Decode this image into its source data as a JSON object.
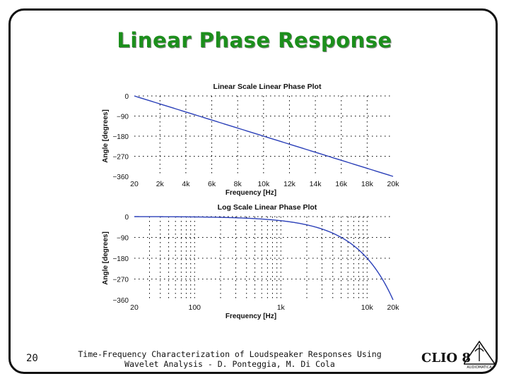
{
  "slide": {
    "title": "Linear Phase Response",
    "page_number": "20",
    "footer_line1": "Time-Frequency Characterization of Loudspeaker Responses Using",
    "footer_line2": "Wavelet Analysis - D. Ponteggia, M. Di Cola",
    "logo_text": "CLIO 8",
    "logo_subtext": "AUDIOMATICA"
  },
  "colors": {
    "title": "#1c8f1c",
    "curve": "#2a3fb8",
    "grid": "#000000"
  },
  "chart_data": [
    {
      "type": "line",
      "title": "Linear Scale Linear Phase Plot",
      "xlabel": "Frequency [Hz]",
      "ylabel": "Angle [degrees]",
      "xscale": "linear",
      "xlim": [
        20,
        20000
      ],
      "ylim": [
        -360,
        0
      ],
      "grid": true,
      "xticks": [
        20,
        2000,
        4000,
        6000,
        8000,
        10000,
        12000,
        14000,
        16000,
        18000,
        20000
      ],
      "xtick_labels": [
        "20",
        "2k",
        "4k",
        "6k",
        "8k",
        "10k",
        "12k",
        "14k",
        "16k",
        "18k",
        "20k"
      ],
      "yticks": [
        0,
        -90,
        -180,
        -270,
        -360
      ],
      "ytick_labels": [
        "0",
        "−90",
        "−180",
        "−270",
        "−360"
      ],
      "series": [
        {
          "x": [
            20,
            20000
          ],
          "y": [
            0,
            -360
          ]
        }
      ]
    },
    {
      "type": "line",
      "title": "Log Scale Linear Phase Plot",
      "xlabel": "Frequency [Hz]",
      "ylabel": "Angle [degrees]",
      "xscale": "log",
      "xlim": [
        20,
        20000
      ],
      "ylim": [
        -360,
        0
      ],
      "grid": true,
      "xticks": [
        20,
        100,
        1000,
        10000,
        20000
      ],
      "xtick_labels": [
        "20",
        "100",
        "1k",
        "10k",
        "20k"
      ],
      "yticks": [
        0,
        -90,
        -180,
        -270,
        -360
      ],
      "ytick_labels": [
        "0",
        "−90",
        "−180",
        "−270",
        "−360"
      ],
      "series": [
        {
          "x": [
            20,
            20000
          ],
          "y": [
            0,
            -360
          ]
        }
      ]
    }
  ]
}
